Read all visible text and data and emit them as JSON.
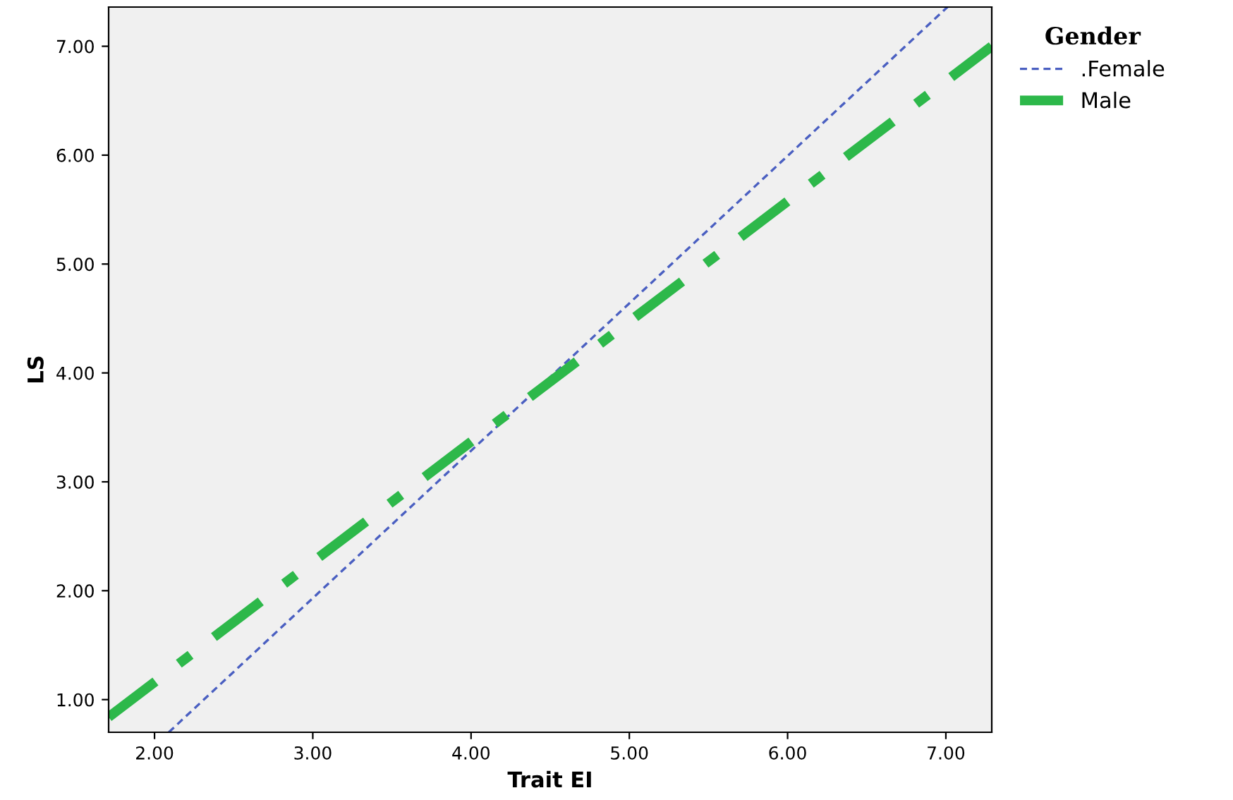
{
  "chart_data": {
    "type": "line",
    "xlabel": "Trait EI",
    "ylabel": "LS",
    "legend_title": "Gender",
    "legend": "top right",
    "grid": false,
    "marker": "none",
    "xlim": [
      1.71,
      7.29
    ],
    "ylim": [
      0.7,
      7.36
    ],
    "xticks": [
      {
        "value": 2,
        "label": "2.00"
      },
      {
        "value": 3,
        "label": "3.00"
      },
      {
        "value": 4,
        "label": "4.00"
      },
      {
        "value": 5,
        "label": "5.00"
      },
      {
        "value": 6,
        "label": "6.00"
      },
      {
        "value": 7,
        "label": "7.00"
      }
    ],
    "yticks": [
      {
        "value": 1,
        "label": "1.00"
      },
      {
        "value": 2,
        "label": "2.00"
      },
      {
        "value": 3,
        "label": "3.00"
      },
      {
        "value": 4,
        "label": "4.00"
      },
      {
        "value": 5,
        "label": "5.00"
      },
      {
        "value": 6,
        "label": "6.00"
      },
      {
        "value": 7,
        "label": "7.00"
      }
    ],
    "series": [
      {
        "name": ".Female",
        "color": "#4a5fc1",
        "x": [
          2.09,
          7.01
        ],
        "values": [
          0.7,
          7.36
        ],
        "line_style": "dashed"
      },
      {
        "name": "Male",
        "color": "#2db84a",
        "x": [
          1.71,
          7.29
        ],
        "values": [
          0.84,
          7.0
        ],
        "line_style": "dashdot"
      }
    ]
  }
}
